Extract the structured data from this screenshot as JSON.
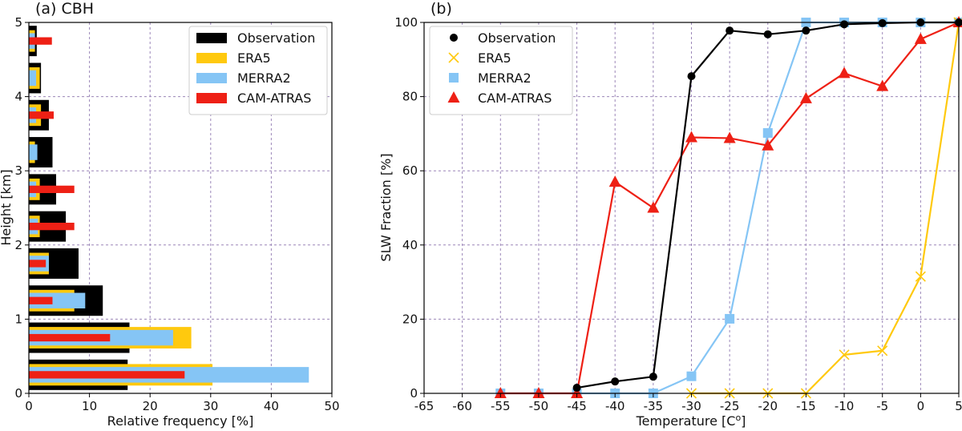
{
  "chart_data": [
    {
      "panel": "(a) CBH",
      "type": "bar",
      "orientation": "horizontal",
      "title": "(a) CBH",
      "xlabel": "Relative frequency [%]",
      "ylabel": "Height [km]",
      "xlim": [
        0,
        50
      ],
      "ylim": [
        0,
        5
      ],
      "xticks": [
        "0",
        "10",
        "20",
        "30",
        "40",
        "50"
      ],
      "yticks": [
        "0",
        "1",
        "2",
        "3",
        "4",
        "5"
      ],
      "grid": true,
      "legend_position": "top-right",
      "categories": [
        0.25,
        0.75,
        1.25,
        1.75,
        2.25,
        2.75,
        3.25,
        3.75,
        4.25,
        4.75
      ],
      "series": [
        {
          "name": "Observation",
          "color": "#000000",
          "values": [
            16.3,
            16.6,
            12.2,
            8.2,
            6.1,
            4.5,
            3.9,
            3.3,
            2.0,
            1.3
          ]
        },
        {
          "name": "ERA5",
          "color": "#FFC90E",
          "values": [
            30.3,
            26.8,
            7.5,
            3.3,
            1.8,
            1.8,
            1.0,
            2.0,
            1.8,
            1.0
          ]
        },
        {
          "name": "MERRA2",
          "color": "#85C5F5",
          "values": [
            46.2,
            23.8,
            9.3,
            3.3,
            1.5,
            1.2,
            1.4,
            1.2,
            1.2,
            1.0
          ]
        },
        {
          "name": "CAM-ATRAS",
          "color": "#EE2015",
          "values": [
            25.7,
            13.4,
            3.9,
            2.8,
            7.5,
            7.5,
            0,
            4.1,
            0,
            3.8
          ]
        }
      ]
    },
    {
      "panel": "(b)",
      "type": "line",
      "title": "(b)",
      "xlabel": "Temperature [C",
      "xlabel_sup": "o",
      "xlabel_end": "]",
      "ylabel": "SLW Fraction [%]",
      "xlim": [
        -65,
        5
      ],
      "ylim": [
        0,
        100
      ],
      "xticks": [
        "-65",
        "-60",
        "-55",
        "-50",
        "-45",
        "-40",
        "-35",
        "-30",
        "-25",
        "-20",
        "-15",
        "-10",
        "-5",
        "0",
        "5"
      ],
      "yticks": [
        "0",
        "20",
        "40",
        "60",
        "80",
        "100"
      ],
      "grid": true,
      "legend_position": "top-left",
      "series": [
        {
          "name": "Observation",
          "color": "#000000",
          "marker": "circle",
          "x": [
            -45,
            -40,
            -35,
            -30,
            -25,
            -20,
            -15,
            -10,
            -5,
            0,
            5
          ],
          "y": [
            1.5,
            3.2,
            4.5,
            85.5,
            97.8,
            96.8,
            97.8,
            99.5,
            99.8,
            100,
            100
          ]
        },
        {
          "name": "ERA5",
          "color": "#FFC90E",
          "marker": "x",
          "x": [
            -30,
            -25,
            -20,
            -15,
            -10,
            -5,
            0,
            5
          ],
          "y": [
            0,
            0,
            0,
            0,
            10.4,
            11.5,
            31.5,
            100
          ]
        },
        {
          "name": "MERRA2",
          "color": "#85C5F5",
          "marker": "square",
          "x": [
            -55,
            -50,
            -45,
            -40,
            -35,
            -30,
            -25,
            -20,
            -15,
            -10,
            -5,
            0,
            5
          ],
          "y": [
            0,
            0,
            0,
            0,
            0,
            4.6,
            20.1,
            70.2,
            100,
            100,
            100,
            100,
            100
          ]
        },
        {
          "name": "CAM-ATRAS",
          "color": "#EE2015",
          "marker": "triangle",
          "x": [
            -55,
            -50,
            -45,
            -40,
            -35,
            -30,
            -25,
            -20,
            -15,
            -10,
            -5,
            0,
            5
          ],
          "y": [
            0,
            0,
            0,
            57,
            50,
            69,
            68.8,
            66.8,
            79.5,
            86.3,
            82.8,
            95.5,
            100
          ]
        }
      ]
    }
  ]
}
